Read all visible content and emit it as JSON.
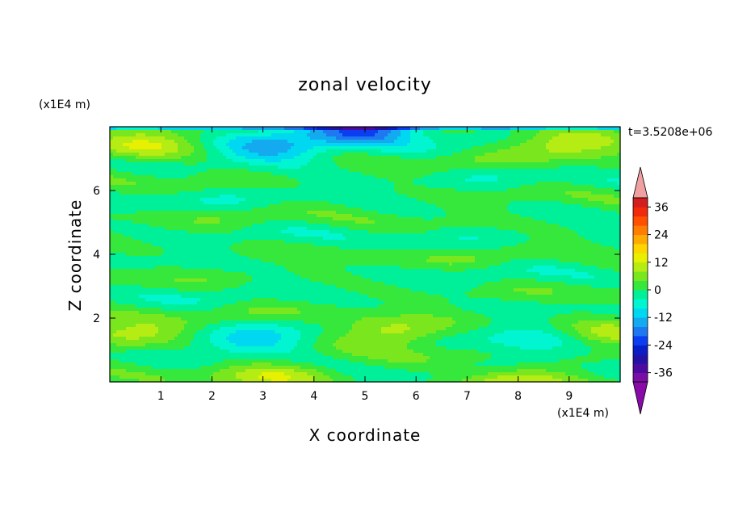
{
  "chart_data": {
    "type": "heatmap",
    "title": "zonal velocity",
    "xlabel": "X coordinate",
    "ylabel": "Z coordinate",
    "x_unit": "(x1E4 m)",
    "y_unit": "(x1E4 m)",
    "time_label": "t=3.5208e+06",
    "xlim": [
      0,
      10
    ],
    "ylim": [
      0,
      8
    ],
    "x_ticks": [
      1,
      2,
      3,
      4,
      5,
      6,
      7,
      8,
      9
    ],
    "y_ticks": [
      2,
      4,
      6
    ],
    "colorbar": {
      "ticks": [
        36,
        24,
        12,
        0,
        -12,
        -24,
        -36
      ],
      "levels": [
        -40,
        -36,
        -32,
        -28,
        -24,
        -20,
        -16,
        -12,
        -8,
        -4,
        0,
        4,
        8,
        12,
        16,
        20,
        24,
        28,
        32,
        36,
        40
      ],
      "colors": [
        "#7a0da6",
        "#4b0ba0",
        "#2412a6",
        "#0a1ec8",
        "#0a3ef0",
        "#1e78f0",
        "#14aaf0",
        "#00d7f0",
        "#00f5d0",
        "#00f09a",
        "#37e83c",
        "#7ae61e",
        "#b4ec14",
        "#e6f000",
        "#ffd500",
        "#ffaa00",
        "#ff7d00",
        "#ff5000",
        "#f02a0a",
        "#d21e1e"
      ],
      "under_color": "#8a0aa8",
      "over_color": "#f0a0a0"
    },
    "field_description_values": {
      "background_level": 0,
      "features": [
        {
          "x": 0.4,
          "z": 1.5,
          "value": 10
        },
        {
          "x": 5.5,
          "z": 1.5,
          "value": 12
        },
        {
          "x": 9.7,
          "z": 1.5,
          "value": 10
        },
        {
          "x": 2.8,
          "z": 1.2,
          "value": -10
        },
        {
          "x": 8.3,
          "z": 1.2,
          "value": -10
        },
        {
          "x": 3.2,
          "z": 0.1,
          "value": 12
        },
        {
          "x": 8.0,
          "z": 0.1,
          "value": 12
        },
        {
          "x": 0.6,
          "z": 7.4,
          "value": 12
        },
        {
          "x": 9.0,
          "z": 7.5,
          "value": 12
        },
        {
          "x": 3.2,
          "z": 7.3,
          "value": -14
        },
        {
          "x": 5.0,
          "z": 7.95,
          "value": -22
        }
      ]
    }
  }
}
